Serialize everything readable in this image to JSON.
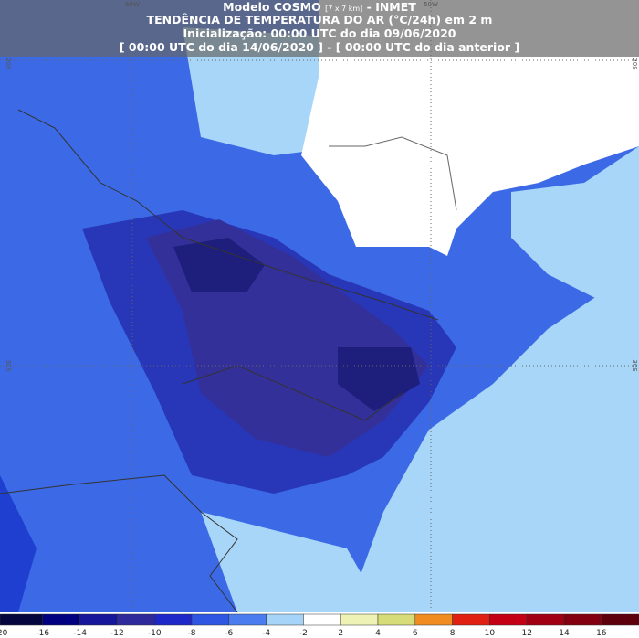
{
  "header": {
    "model": "Modelo COSMO",
    "resolution": "[7 x 7 km]",
    "org": "- INMET",
    "line2": "TENDÊNCIA DE TEMPERATURA DO AR (°C/24h) em 2 m",
    "line3": "Inicialização: 00:00 UTC do dia 09/06/2020",
    "line4": "[ 00:00 UTC do dia 14/06/2020 ] - [ 00:00 UTC do dia anterior ]"
  },
  "grid_labels": {
    "lon": [
      "60W",
      "50W"
    ],
    "lat_left": [
      "20S",
      "30S"
    ],
    "lat_right": [
      "20S",
      "30S"
    ]
  },
  "colorbar": {
    "labels": [
      "-20",
      "-16",
      "-14",
      "-12",
      "-10",
      "-8",
      "-6",
      "-4",
      "-2",
      "2",
      "4",
      "6",
      "8",
      "10",
      "12",
      "14",
      "16"
    ],
    "colors": [
      "#06063e",
      "#000080",
      "#16169a",
      "#2e2a9c",
      "#1e28c8",
      "#2f56e2",
      "#4a7cf0",
      "#a6d4f8",
      "#ffffff",
      "#eef2b4",
      "#d6dc78",
      "#f08c20",
      "#e02010",
      "#c40014",
      "#a00012",
      "#820010",
      "#5e000c"
    ]
  }
}
